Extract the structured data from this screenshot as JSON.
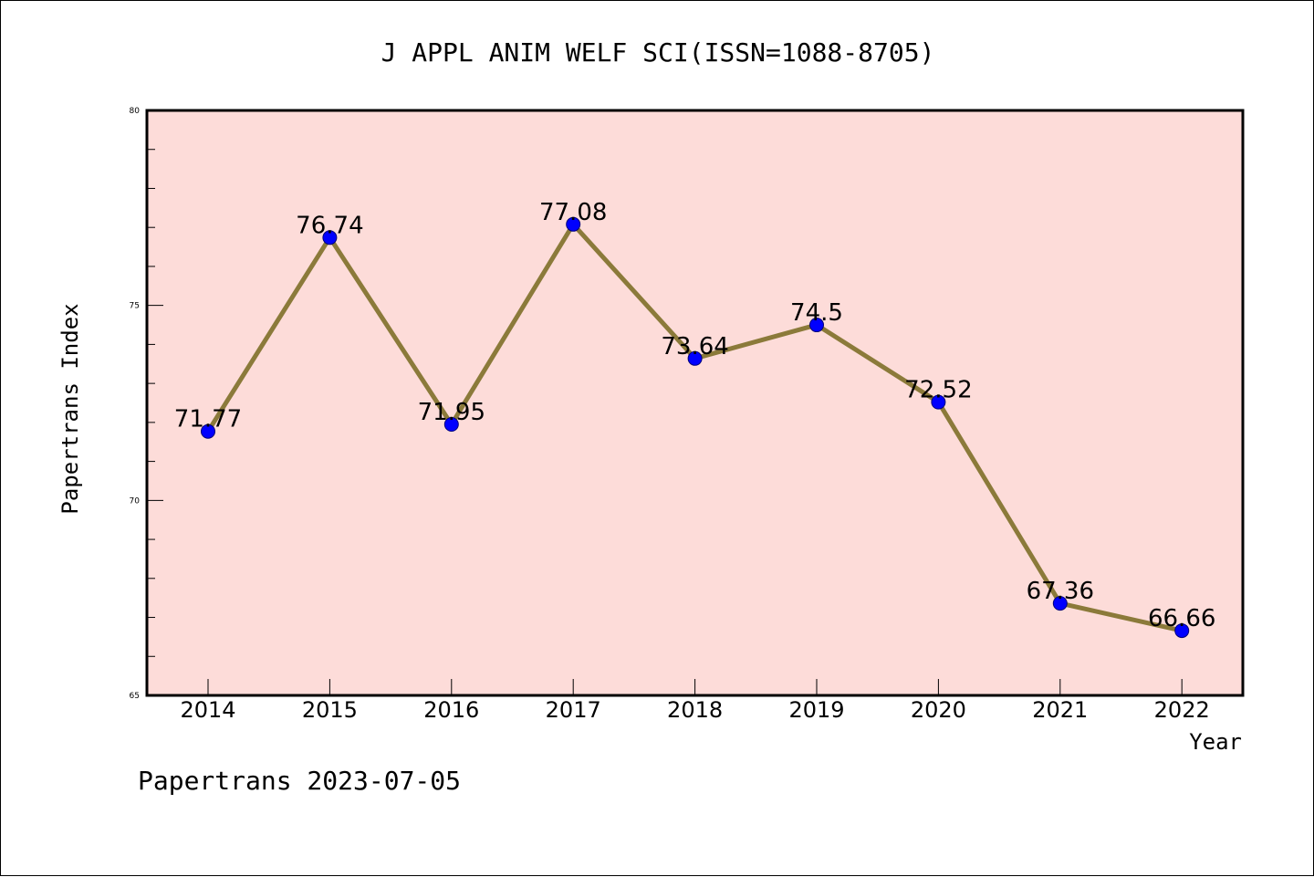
{
  "chart_data": {
    "type": "line",
    "title": "J APPL ANIM WELF SCI(ISSN=1088-8705)",
    "xlabel": "Year",
    "ylabel": "Papertrans Index",
    "categories": [
      "2014",
      "2015",
      "2016",
      "2017",
      "2018",
      "2019",
      "2020",
      "2021",
      "2022"
    ],
    "series": [
      {
        "values": [
          71.77,
          76.74,
          71.95,
          77.08,
          73.64,
          74.5,
          72.52,
          67.36,
          66.66
        ],
        "labels": [
          "71.77",
          "76.74",
          "71.95",
          "77.08",
          "73.64",
          "74.5",
          "72.52",
          "67.36",
          "66.66"
        ]
      }
    ],
    "ylim": [
      65,
      80
    ],
    "yticks": [
      "65",
      "70",
      "75",
      "80"
    ],
    "grid": false,
    "colors": {
      "plot_background": "#fddcd9",
      "line": "#8b7a3a",
      "marker": "#0000ff"
    }
  },
  "footer": "Papertrans 2023-07-05"
}
